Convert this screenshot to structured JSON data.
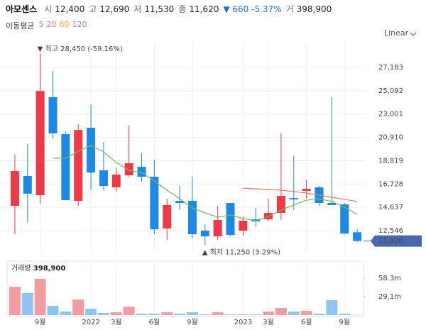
{
  "chart_data": {
    "type": "candlestick",
    "title": "아모센스",
    "header": [
      {
        "label": "시",
        "value": "12,400"
      },
      {
        "label": "고",
        "value": "12,690"
      },
      {
        "label": "저",
        "value": "11,530"
      },
      {
        "label": "종",
        "value": "11,620"
      }
    ],
    "change": "▼ 660 -5.37%",
    "header_volume": {
      "label": "거",
      "value": "398,900"
    },
    "legend_title": "이동평균",
    "scale_label": "Linear",
    "categories": [
      null,
      null,
      "9월",
      null,
      null,
      null,
      "2022",
      null,
      "3월",
      null,
      null,
      "6월",
      null,
      null,
      "9월",
      null,
      null,
      null,
      "2023",
      null,
      "3월",
      null,
      null,
      "6월",
      null,
      null,
      "9월",
      null
    ],
    "open": [
      14770,
      17450,
      15730,
      24510,
      21200,
      15220,
      21770,
      17960,
      16430,
      17510,
      18270,
      17380,
      12740,
      15220,
      15220,
      12550,
      12040,
      15030,
      12550,
      13560,
      13560,
      14140,
      15470,
      16110,
      16430,
      15030,
      14900,
      12400
    ],
    "high": [
      19360,
      20310,
      28450,
      26870,
      21460,
      22090,
      23870,
      20500,
      18210,
      21970,
      19480,
      18910,
      15410,
      16560,
      17380,
      13120,
      14770,
      15030,
      13820,
      14580,
      15410,
      21330,
      19290,
      17130,
      16560,
      24510,
      15030,
      12690
    ],
    "low": [
      12230,
      13310,
      14960,
      20820,
      15280,
      14770,
      16170,
      16170,
      16050,
      17380,
      16940,
      12230,
      11720,
      14390,
      11850,
      11250,
      11720,
      12040,
      12100,
      12860,
      13370,
      13500,
      14390,
      15410,
      14770,
      14840,
      12230,
      11530
    ],
    "close": [
      17890,
      15860,
      25080,
      21270,
      15280,
      21580,
      17760,
      16560,
      17570,
      18590,
      17380,
      12670,
      14840,
      15030,
      12230,
      12040,
      13500,
      12160,
      13440,
      13370,
      14140,
      15660,
      15350,
      16300,
      15030,
      14840,
      12290,
      11620
    ],
    "up_color": "#ee3a48",
    "down_color": "#1e88e5",
    "ma_series": [
      {
        "name": "5",
        "color": "#6cc05f",
        "values": [
          null,
          null,
          null,
          19040,
          19040,
          19670,
          20180,
          19610,
          18660,
          17960,
          17760,
          17000,
          16170,
          15410,
          14580,
          14140,
          13760,
          13950,
          13630,
          13440,
          13820,
          14390,
          14840,
          15280,
          15410,
          15160,
          14650,
          14010
        ]
      },
      {
        "name": "20",
        "color": "#e8766f",
        "values": [
          null,
          null,
          null,
          null,
          null,
          null,
          null,
          null,
          null,
          null,
          null,
          null,
          null,
          null,
          null,
          null,
          null,
          null,
          16360,
          16300,
          16240,
          16170,
          16050,
          15920,
          15730,
          15540,
          15350,
          15160
        ]
      },
      {
        "name": "60",
        "color": "#f2a33a",
        "values": [
          null,
          null,
          null,
          null,
          null,
          null,
          null,
          null,
          null,
          null,
          null,
          null,
          null,
          null,
          null,
          null,
          null,
          null,
          null,
          null,
          null,
          null,
          null,
          null,
          null,
          null,
          null,
          null
        ]
      },
      {
        "name": "120",
        "color": "#9b7fe0",
        "values": [
          null,
          null,
          null,
          null,
          null,
          null,
          null,
          null,
          null,
          null,
          null,
          null,
          null,
          null,
          null,
          null,
          null,
          null,
          null,
          null,
          null,
          null,
          null,
          null,
          null,
          null,
          null,
          null
        ]
      }
    ],
    "ylim": [
      10830,
      29410
    ],
    "yticks": [
      {
        "value": 12546,
        "label": "12,546"
      },
      {
        "value": 14637,
        "label": "14,637"
      },
      {
        "value": 16728,
        "label": "16,728"
      },
      {
        "value": 18819,
        "label": "18,819"
      },
      {
        "value": 20910,
        "label": "20,910"
      },
      {
        "value": 23001,
        "label": "23,001"
      },
      {
        "value": 25092,
        "label": "25,092"
      },
      {
        "value": 27183,
        "label": "27,183"
      }
    ],
    "grid": true,
    "last_price": {
      "value": 11620,
      "label": "11,620"
    },
    "high_annotation": "▼ 최고 28,450 (-59.16%)",
    "low_annotation": "▲ 최저 11,250 (3.29%)",
    "volume": {
      "title": "거래량",
      "last": "398,900",
      "values": [
        44.8,
        34.8,
        57.2,
        14.6,
        5.6,
        24.7,
        10.1,
        3.4,
        4.5,
        13.5,
        2.2,
        2.2,
        4.5,
        2.2,
        4.5,
        1.1,
        4.5,
        1.1,
        1.1,
        1.1,
        5.6,
        11.2,
        5.6,
        6.7,
        2.2,
        23.5,
        2.2,
        0.3989
      ],
      "up_color": "#f29ba0",
      "down_color": "#8fc3f0",
      "ylim": [
        0,
        83
      ],
      "yticks": [
        {
          "value": 29.1,
          "label": "29.1m"
        },
        {
          "value": 58.3,
          "label": "58.3m"
        }
      ]
    }
  }
}
